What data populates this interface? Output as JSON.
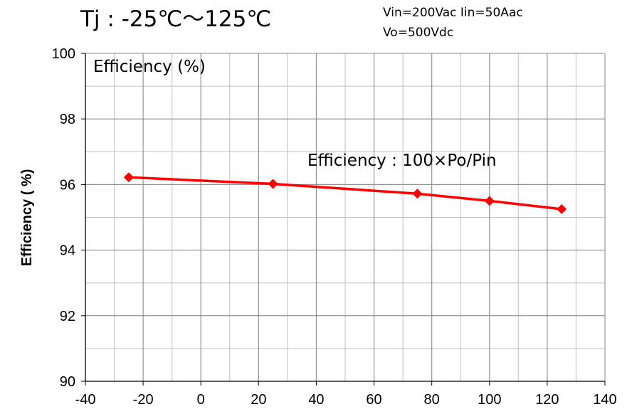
{
  "chart_data": {
    "type": "line",
    "title": "Tj : -25℃～125℃",
    "conditions": [
      "Vin=200Vac  Iin=50Aac",
      "Vo=500Vdc"
    ],
    "ylabel": "Efficiency ( %)",
    "xlabel": "",
    "plot_label": "Efficiency (%)",
    "annotation": "Efficiency : 100×Po/Pin",
    "xlim": [
      -40,
      140
    ],
    "ylim": [
      90,
      100
    ],
    "x_ticks": [
      -40,
      -20,
      0,
      20,
      40,
      60,
      80,
      100,
      120,
      140
    ],
    "y_ticks": [
      90,
      92,
      94,
      96,
      98,
      100
    ],
    "grid": true,
    "series": [
      {
        "color": "#ff0000",
        "marker": "diamond",
        "x": [
          -25,
          25,
          75,
          100,
          125
        ],
        "y": [
          96.22,
          96.02,
          95.72,
          95.5,
          95.25
        ]
      }
    ]
  }
}
